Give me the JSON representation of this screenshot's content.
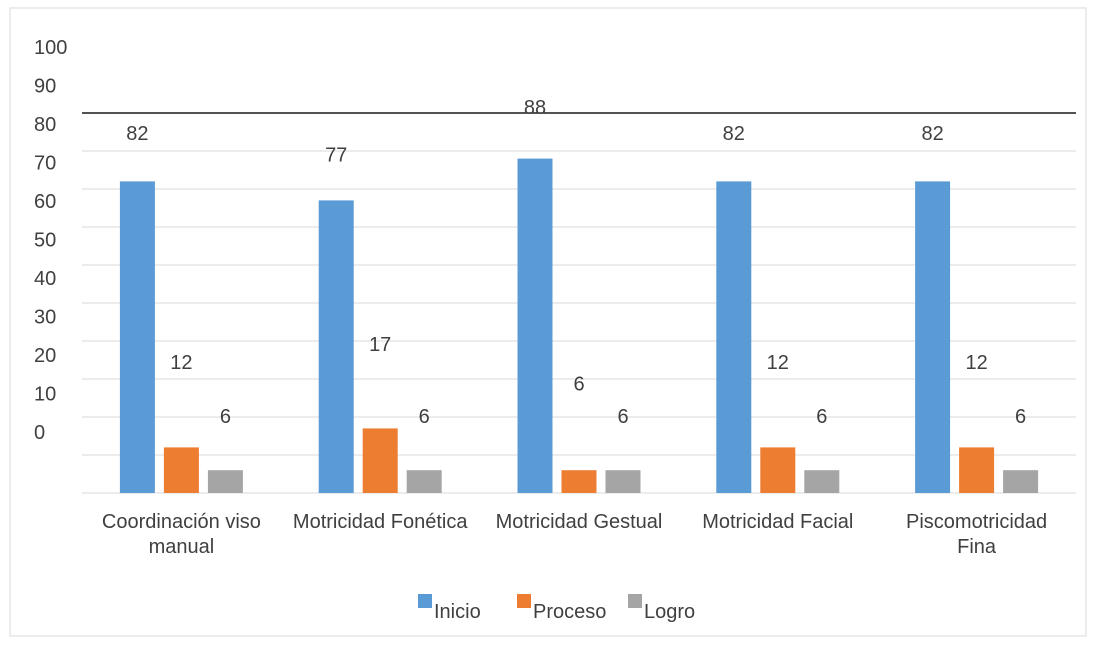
{
  "chart_data": {
    "type": "bar",
    "categories": [
      [
        "Coordinación viso",
        "manual"
      ],
      [
        "Motricidad Fonética"
      ],
      [
        "Motricidad Gestual"
      ],
      [
        "Motricidad Facial"
      ],
      [
        "Piscomotricidad",
        "Fina"
      ]
    ],
    "series": [
      {
        "name": "Inicio",
        "values": [
          82,
          77,
          88,
          82,
          82
        ],
        "color": "#5B9BD5"
      },
      {
        "name": "Proceso",
        "values": [
          12,
          17,
          6,
          12,
          12
        ],
        "color": "#ED7D31"
      },
      {
        "name": "Logro",
        "values": [
          6,
          6,
          6,
          6,
          6
        ],
        "color": "#A5A5A5"
      }
    ],
    "y_tick_labels": [
      "100",
      "90",
      "80",
      "70",
      "60",
      "50",
      "40",
      "30",
      "20",
      "10",
      "0"
    ],
    "ylim": [
      0,
      100
    ],
    "grid": true,
    "legend": "bottom",
    "title": "",
    "xlabel": "",
    "ylabel": ""
  }
}
